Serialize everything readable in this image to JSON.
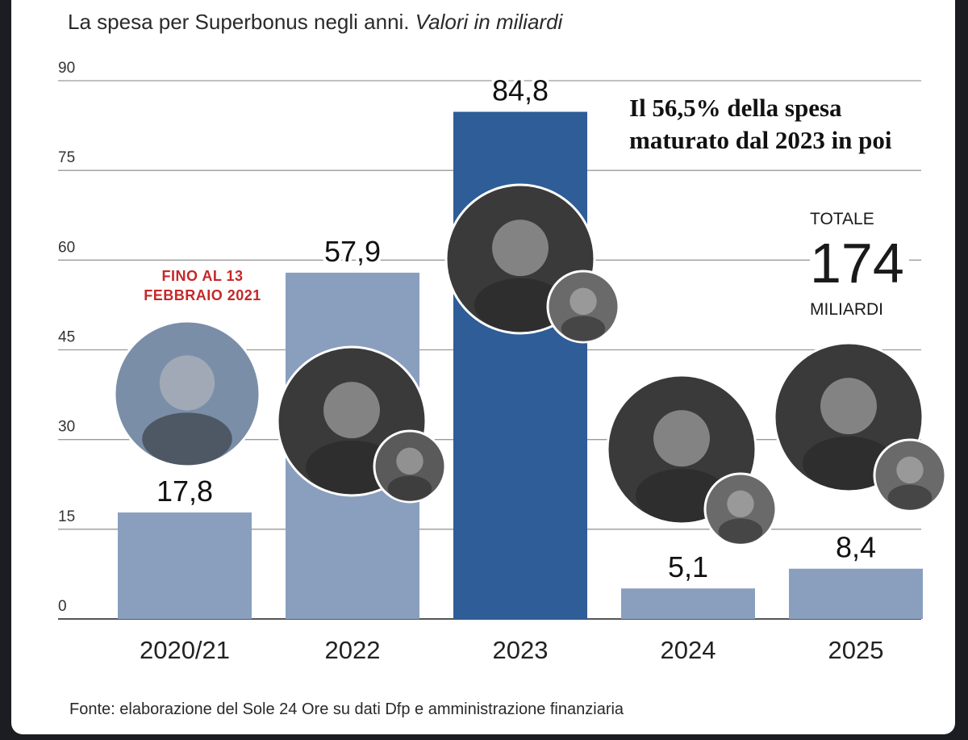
{
  "header": {
    "title_main": "La spesa per Superbonus negli anni.",
    "title_italic": "Valori in miliardi"
  },
  "callout": {
    "text": "Il 56,5% della spesa\nmaturato dal 2023 in poi"
  },
  "total": {
    "label": "TOTALE",
    "value": "174",
    "unit": "MILIARDI"
  },
  "note": {
    "text": "FINO AL 13\nFEBBRAIO 2021"
  },
  "source": {
    "text": "Fonte: elaborazione del Sole 24 Ore su dati Dfp e amministrazione finanziaria"
  },
  "colors": {
    "bar": "#8a9fbe",
    "highlight": "#2e5d97",
    "grid": "#9a9a9a",
    "note": "#c62828"
  },
  "chart_data": {
    "type": "bar",
    "categories": [
      "2020/21",
      "2022",
      "2023",
      "2024",
      "2025"
    ],
    "values": [
      17.8,
      57.9,
      84.8,
      5.1,
      8.4
    ],
    "value_labels": [
      "17,8",
      "57,9",
      "84,8",
      "5,1",
      "8,4"
    ],
    "highlight_index": 2,
    "yticks": [
      0,
      15,
      30,
      45,
      60,
      75,
      90
    ],
    "ylim": [
      0,
      90
    ],
    "grid": true
  }
}
